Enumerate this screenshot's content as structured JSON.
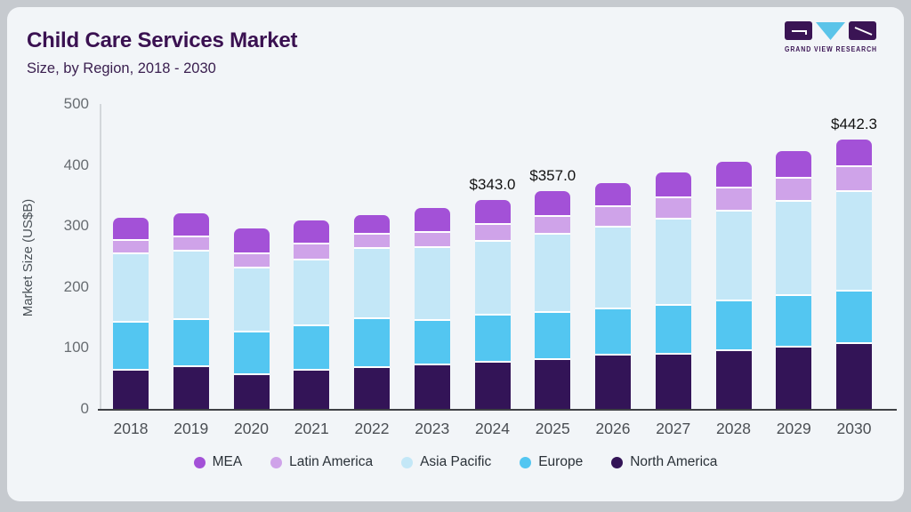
{
  "header": {
    "title": "Child Care Services Market",
    "subtitle": "Size, by Region, 2018 - 2030"
  },
  "logo": {
    "text": "GRAND VIEW RESEARCH",
    "dark_color": "#3a1454",
    "accent_color": "#5bc4e9"
  },
  "chart_data": {
    "type": "bar",
    "stacked": true,
    "title": "Child Care Services Market Size, by Region, 2018 - 2030",
    "ylabel": "Market Size (US$B)",
    "ylim": [
      0,
      500
    ],
    "yticks": [
      0,
      100,
      200,
      300,
      400,
      500
    ],
    "grid": false,
    "legend_position": "bottom",
    "categories": [
      "2018",
      "2019",
      "2020",
      "2021",
      "2022",
      "2023",
      "2024",
      "2025",
      "2026",
      "2027",
      "2028",
      "2029",
      "2030"
    ],
    "series": [
      {
        "name": "North America",
        "color": "#331457",
        "values": [
          65,
          71,
          58,
          66,
          70,
          74,
          79,
          83,
          90,
          92,
          98,
          104,
          109
        ]
      },
      {
        "name": "Europe",
        "color": "#53c6f1",
        "values": [
          79,
          78,
          70,
          73,
          80,
          73,
          77,
          77,
          76,
          80,
          82,
          84,
          87
        ]
      },
      {
        "name": "Asia Pacific",
        "color": "#c3e7f7",
        "values": [
          112,
          112,
          105,
          107,
          115,
          120,
          121,
          129,
          135,
          141,
          147,
          154,
          163
        ]
      },
      {
        "name": "Latin America",
        "color": "#cfa3e9",
        "values": [
          22,
          24,
          24,
          26,
          24,
          25,
          28,
          29,
          33,
          36,
          37,
          38,
          40
        ]
      },
      {
        "name": "MEA",
        "color": "#a351d7",
        "values": [
          36,
          36,
          39,
          37,
          29,
          37,
          38,
          39,
          37,
          39,
          41,
          43,
          43.3
        ]
      }
    ],
    "totals": [
      314,
      321,
      296,
      309,
      318,
      329,
      343.0,
      357.0,
      371,
      388,
      405,
      423,
      442.3
    ],
    "annotations": [
      {
        "category": "2024",
        "label": "$343.0"
      },
      {
        "category": "2025",
        "label": "$357.0"
      },
      {
        "category": "2030",
        "label": "$442.3"
      }
    ],
    "legend": [
      "MEA",
      "Latin America",
      "Asia Pacific",
      "Europe",
      "North America"
    ]
  }
}
